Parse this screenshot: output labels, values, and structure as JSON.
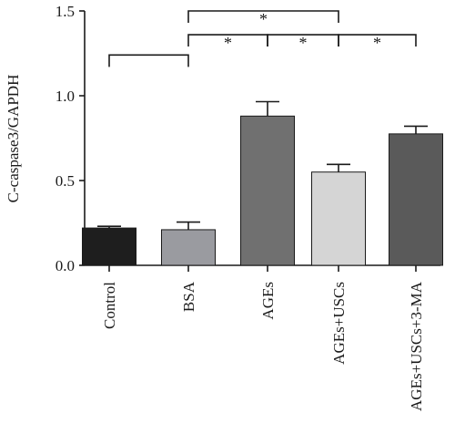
{
  "chart_data": {
    "type": "bar",
    "title": "",
    "xlabel": "",
    "ylabel": "C-caspase3/GAPDH",
    "ylim": [
      0,
      1.5
    ],
    "yticks": [
      "0.0",
      "0.5",
      "1.0",
      "1.5"
    ],
    "categories": [
      "Control",
      "BSA",
      "AGEs",
      "AGEs+USCs",
      "AGEs+USCs+3-MA"
    ],
    "values": [
      0.22,
      0.21,
      0.88,
      0.55,
      0.775
    ],
    "errors": [
      0.01,
      0.045,
      0.085,
      0.045,
      0.045
    ],
    "colors": [
      "#1e1e1e",
      "#9a9ba0",
      "#707070",
      "#d5d5d5",
      "#5a5a5a"
    ],
    "grid": false,
    "comparisons": [
      {
        "from": 0,
        "to": 1,
        "level": 1.24,
        "label": ""
      },
      {
        "from": 1,
        "to": 2,
        "level": 1.36,
        "label": "*"
      },
      {
        "from": 2,
        "to": 3,
        "level": 1.36,
        "label": "*"
      },
      {
        "from": 3,
        "to": 4,
        "level": 1.36,
        "label": "*"
      },
      {
        "from": 1,
        "to": 3,
        "level": 1.5,
        "label": "*"
      }
    ]
  }
}
